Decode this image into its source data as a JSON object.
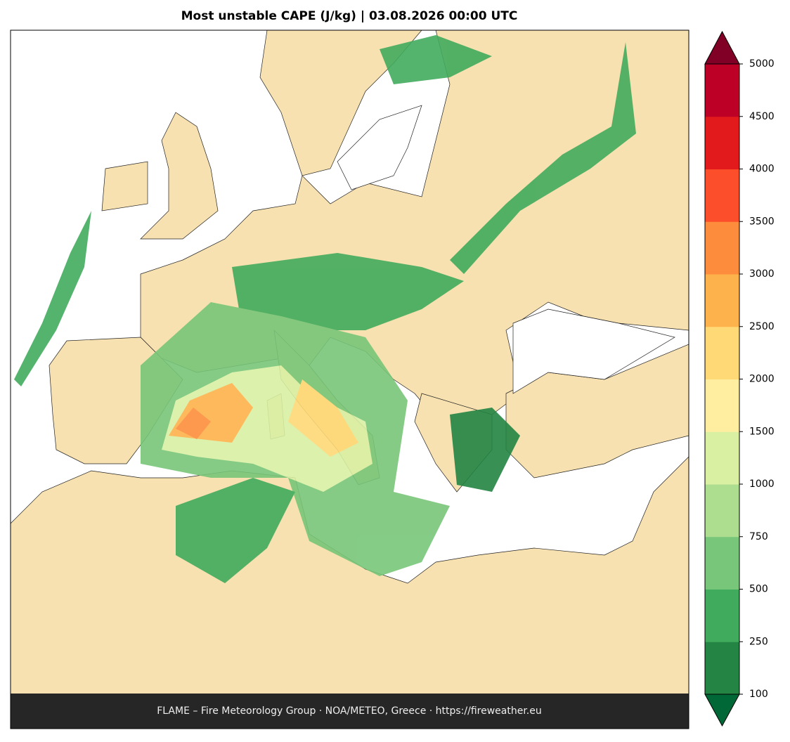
{
  "title": "Most unstable CAPE (J/kg)  |  03.08.2026 00:00 UTC",
  "footer": "FLAME – Fire Meteorology Group · NOA/METEO, Greece · https://fireweather.eu",
  "colorbar": {
    "levels": [
      100,
      250,
      500,
      750,
      1000,
      1500,
      2000,
      2500,
      3000,
      3500,
      4000,
      4500,
      5000
    ],
    "colors": [
      "#238443",
      "#41ab5d",
      "#78c679",
      "#addd8e",
      "#d9f0a3",
      "#ffeda0",
      "#fed976",
      "#feb24c",
      "#fd8d3c",
      "#fc4e2a",
      "#e31a1c",
      "#bd0026"
    ],
    "under_color": "#006837",
    "over_color": "#800026"
  }
}
